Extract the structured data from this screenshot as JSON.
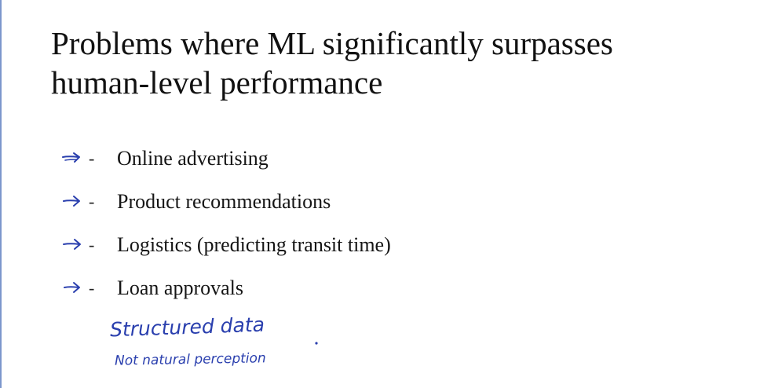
{
  "slide": {
    "title_line1": "Problems where ML significantly surpasses",
    "title_line2": "human-level performance"
  },
  "bullets": [
    {
      "marker": "-",
      "text": "Online advertising",
      "annotation_icon": "arrow-icon"
    },
    {
      "marker": "-",
      "text": "Product recommendations",
      "annotation_icon": "arrow-icon"
    },
    {
      "marker": "-",
      "text": "Logistics (predicting transit time)",
      "annotation_icon": "arrow-icon"
    },
    {
      "marker": "-",
      "text": "Loan approvals",
      "annotation_icon": "arrow-icon"
    }
  ],
  "handwritten_notes": {
    "line1": "Structured data",
    "line2": "Not natural perception"
  },
  "colors": {
    "background": "#ffffff",
    "title_text": "#111111",
    "body_text": "#151515",
    "ink": "#2a3fae",
    "left_rule": "#7c97cc"
  }
}
